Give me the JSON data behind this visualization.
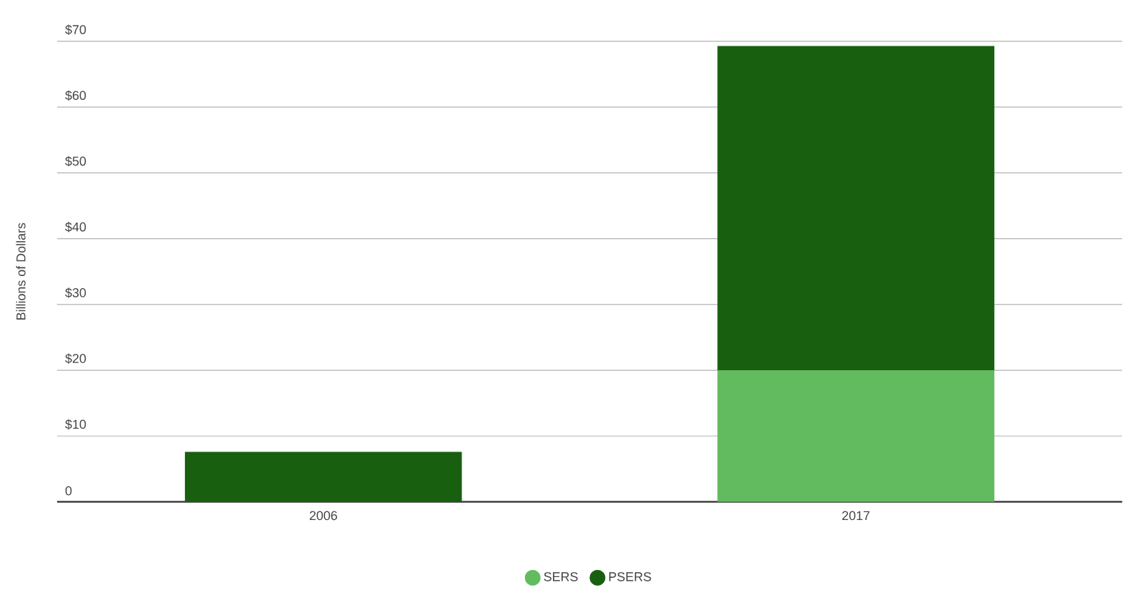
{
  "chart_data": {
    "type": "bar",
    "stacked": true,
    "ylabel": "Billions of Dollars",
    "categories": [
      "2006",
      "2017"
    ],
    "series": [
      {
        "name": "SERS",
        "color": "#63bb5f",
        "values": [
          0,
          20
        ]
      },
      {
        "name": "PSERS",
        "color": "#185f10",
        "values": [
          7.6,
          49.3
        ]
      }
    ],
    "ylim": [
      0,
      70
    ],
    "yticks": [
      0,
      {
        "value": 10,
        "label": "$10"
      },
      {
        "value": 20,
        "label": "$20"
      },
      {
        "value": 30,
        "label": "$30"
      },
      {
        "value": 40,
        "label": "$40"
      },
      {
        "value": 50,
        "label": "$50"
      },
      {
        "value": 60,
        "label": "$60"
      },
      {
        "value": 70,
        "label": "$70"
      }
    ],
    "grid": "y",
    "legend": "bottom"
  }
}
